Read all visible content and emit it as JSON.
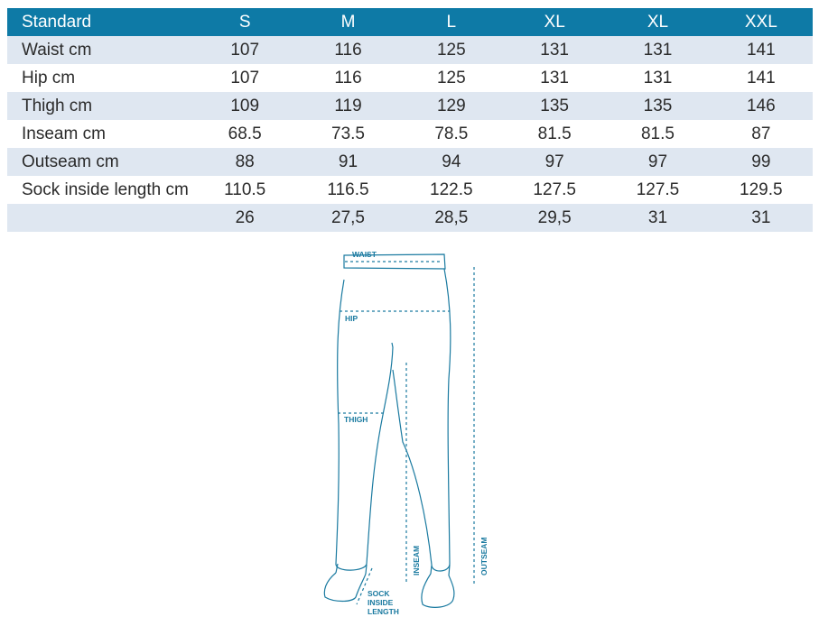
{
  "table": {
    "headers": [
      "Standard",
      "S",
      "M",
      "L",
      "XL",
      "XL",
      "XXL"
    ],
    "rows": [
      [
        "Waist cm",
        "107",
        "116",
        "125",
        "131",
        "131",
        "141"
      ],
      [
        "Hip cm",
        "107",
        "116",
        "125",
        "131",
        "131",
        "141"
      ],
      [
        "Thigh cm",
        "109",
        "119",
        "129",
        "135",
        "135",
        "146"
      ],
      [
        "Inseam cm",
        "68.5",
        "73.5",
        "78.5",
        "81.5",
        "81.5",
        "87"
      ],
      [
        "Outseam cm",
        "88",
        "91",
        "94",
        "97",
        "97",
        "99"
      ],
      [
        "Sock inside length cm",
        "110.5",
        "116.5",
        "122.5",
        "127.5",
        "127.5",
        "129.5"
      ],
      [
        "",
        "26",
        "27,5",
        "28,5",
        "29,5",
        "31",
        "31"
      ]
    ],
    "header_color": "#0e7aa6",
    "stripe_color": "#dfe7f1"
  },
  "diagram": {
    "labels": {
      "waist": "WAIST",
      "hip": "HIP",
      "thigh": "THIGH",
      "inseam": "INSEAM",
      "outseam": "OUTSEAM",
      "sock_1": "SOCK",
      "sock_2": "INSIDE",
      "sock_3": "LENGTH"
    },
    "line_color": "#1a7aa0"
  }
}
